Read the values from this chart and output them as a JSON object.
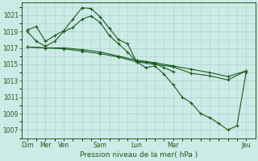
{
  "title": "Pression niveau de la mer( hPa )",
  "bg_color": "#cceae6",
  "grid_color": "#aad4d0",
  "line_color": "#1a5c1a",
  "ylim": [
    1006.0,
    1022.5
  ],
  "yticks": [
    1007,
    1009,
    1011,
    1013,
    1015,
    1017,
    1019,
    1021
  ],
  "xlim": [
    -0.3,
    12.5
  ],
  "x_ticks_major": [
    0,
    1,
    2,
    4,
    6,
    8,
    12
  ],
  "x_tick_labels": [
    "Dim",
    "Mer",
    "Ven",
    "Sam",
    "Lun",
    "Mar",
    "Jeu"
  ],
  "line1_x": [
    0,
    0.5,
    1,
    1.5,
    2,
    2.5,
    3,
    3.5,
    4,
    4.5,
    5,
    5.5,
    6,
    6.5,
    7,
    7.5,
    8
  ],
  "line1_y": [
    1019.2,
    1019.6,
    1017.8,
    1018.5,
    1019.1,
    1020.5,
    1021.9,
    1021.8,
    1020.8,
    1019.4,
    1018.0,
    1017.5,
    1015.3,
    1015.3,
    1015.1,
    1014.6,
    1014.1
  ],
  "line2_x": [
    0,
    0.5,
    1,
    1.5,
    2,
    2.5,
    3,
    3.5,
    4,
    4.5,
    5,
    5.5,
    6,
    6.5,
    7,
    7.5,
    8,
    8.5,
    9,
    9.5,
    10,
    10.5,
    11,
    11.5,
    12
  ],
  "line2_y": [
    1019.0,
    1017.8,
    1017.2,
    1017.8,
    1019.0,
    1019.5,
    1020.5,
    1020.9,
    1020.1,
    1018.5,
    1017.5,
    1016.5,
    1015.3,
    1014.6,
    1014.8,
    1013.8,
    1012.5,
    1011.0,
    1010.3,
    1009.0,
    1008.5,
    1007.8,
    1007.0,
    1007.5,
    1014.0
  ],
  "line3_x": [
    0,
    1,
    2,
    3,
    4,
    5,
    6,
    7,
    8,
    9,
    10,
    11,
    12
  ],
  "line3_y": [
    1017.1,
    1017.0,
    1017.0,
    1016.8,
    1016.5,
    1016.0,
    1015.5,
    1015.2,
    1014.8,
    1014.4,
    1014.0,
    1013.5,
    1014.2
  ],
  "line4_x": [
    0,
    1,
    2,
    3,
    4,
    5,
    6,
    7,
    8,
    9,
    10,
    11,
    12
  ],
  "line4_y": [
    1017.1,
    1017.0,
    1016.9,
    1016.6,
    1016.3,
    1015.9,
    1015.3,
    1015.0,
    1014.7,
    1013.9,
    1013.6,
    1013.1,
    1014.2
  ]
}
